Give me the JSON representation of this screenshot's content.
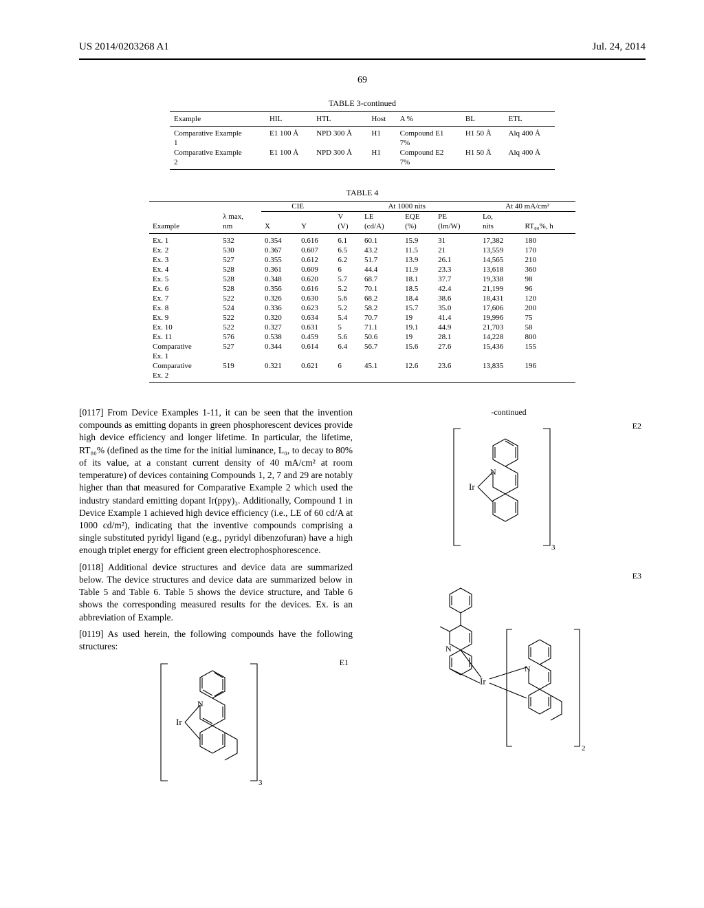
{
  "header": {
    "left": "US 2014/0203268 A1",
    "right": "Jul. 24, 2014"
  },
  "pagenum": "69",
  "table3": {
    "caption": "TABLE 3-continued",
    "columns": [
      "Example",
      "HIL",
      "HTL",
      "Host",
      "A %",
      "BL",
      "ETL"
    ],
    "rows": [
      [
        "Comparative Example 1",
        "E1 100 Å",
        "NPD 300 Å",
        "H1",
        "Compound E1 7%",
        "H1 50 Å",
        "Alq 400 Å"
      ],
      [
        "Comparative Example 2",
        "E1 100 Å",
        "NPD 300 Å",
        "H1",
        "Compound E2 7%",
        "H1 50 Å",
        "Alq 400 Å"
      ]
    ]
  },
  "table4": {
    "caption": "TABLE 4",
    "group_a": "At 1000 nits",
    "group_b": "At 40 mA/cm²",
    "cie_header": "CIE",
    "head1": [
      "",
      "λ max,",
      "",
      "",
      "V",
      "LE",
      "EQE",
      "PE",
      "Lo,",
      ""
    ],
    "head2": [
      "Example",
      "nm",
      "X",
      "Y",
      "(V)",
      "(cd/A)",
      "(%)",
      "(lm/W)",
      "nits",
      "RT₈₀%, h"
    ],
    "rows": [
      [
        "Ex. 1",
        "532",
        "0.354",
        "0.616",
        "6.1",
        "60.1",
        "15.9",
        "31",
        "17,382",
        "180"
      ],
      [
        "Ex. 2",
        "530",
        "0.367",
        "0.607",
        "6.5",
        "43.2",
        "11.5",
        "21",
        "13,559",
        "170"
      ],
      [
        "Ex. 3",
        "527",
        "0.355",
        "0.612",
        "6.2",
        "51.7",
        "13.9",
        "26.1",
        "14,565",
        "210"
      ],
      [
        "Ex. 4",
        "528",
        "0.361",
        "0.609",
        "6",
        "44.4",
        "11.9",
        "23.3",
        "13,618",
        "360"
      ],
      [
        "Ex. 5",
        "528",
        "0.348",
        "0.620",
        "5.7",
        "68.7",
        "18.1",
        "37.7",
        "19,338",
        "98"
      ],
      [
        "Ex. 6",
        "528",
        "0.356",
        "0.616",
        "5.2",
        "70.1",
        "18.5",
        "42.4",
        "21,199",
        "96"
      ],
      [
        "Ex. 7",
        "522",
        "0.326",
        "0.630",
        "5.6",
        "68.2",
        "18.4",
        "38.6",
        "18,431",
        "120"
      ],
      [
        "Ex. 8",
        "524",
        "0.336",
        "0.623",
        "5.2",
        "58.2",
        "15.7",
        "35.0",
        "17,606",
        "200"
      ],
      [
        "Ex. 9",
        "522",
        "0.320",
        "0.634",
        "5.4",
        "70.7",
        "19",
        "41.4",
        "19,996",
        "75"
      ],
      [
        "Ex. 10",
        "522",
        "0.327",
        "0.631",
        "5",
        "71.1",
        "19.1",
        "44.9",
        "21,703",
        "58"
      ],
      [
        "Ex. 11",
        "576",
        "0.538",
        "0.459",
        "5.6",
        "50.6",
        "19",
        "28.1",
        "14,228",
        "800"
      ],
      [
        "Comparative Ex. 1",
        "527",
        "0.344",
        "0.614",
        "6.4",
        "56.7",
        "15.6",
        "27.6",
        "15,436",
        "155"
      ],
      [
        "Comparative Ex. 2",
        "519",
        "0.321",
        "0.621",
        "6",
        "45.1",
        "12.6",
        "23.6",
        "13,835",
        "196"
      ]
    ]
  },
  "para117": "[0117]   From Device Examples 1-11, it can be seen that the invention compounds as emitting dopants in green phosphorescent devices provide high device efficiency and longer lifetime. In particular, the lifetime, RT₈₀% (defined as the time for the initial luminance, L₀, to decay to 80% of its value, at a constant current density of 40 mA/cm² at room temperature) of devices containing Compounds 1, 2, 7 and 29 are notably higher than that measured for Comparative Example 2 which used the industry standard emitting dopant Ir(ppy)₃. Additionally, Compound 1 in Device Example 1 achieved high device efficiency (i.e., LE of 60 cd/A at 1000 cd/m²), indicating that the inventive compounds comprising a single substituted pyridyl ligand (e.g., pyridyl dibenzofuran) have a high enough triplet energy for efficient green electrophosphorescence.",
  "para118": "[0118]   Additional device structures and device data are summarized below. The device structures and device data are summarized below in Table 5 and Table 6. Table 5 shows the device structure, and Table 6 shows the corresponding measured results for the devices. Ex. is an abbreviation of Example.",
  "para119": "[0119]   As used herein, the following compounds have the following structures:",
  "labels": {
    "e1": "E1",
    "e2": "E2",
    "e3": "E3",
    "contd": "-continued"
  },
  "struct_style": {
    "stroke": "#000000",
    "stroke_width": 1.1,
    "fill": "none",
    "font_family": "Times New Roman",
    "atom_font_size": 12
  }
}
